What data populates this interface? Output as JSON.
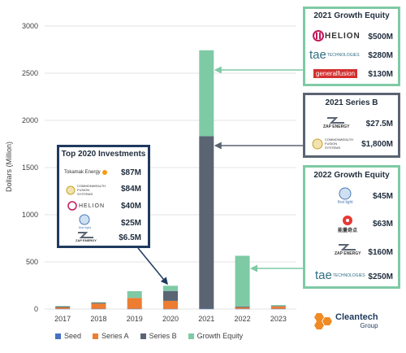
{
  "chart_data": {
    "type": "bar",
    "stacked": true,
    "categories": [
      "2017",
      "2018",
      "2019",
      "2020",
      "2021",
      "2022",
      "2023"
    ],
    "ylabel": "Dollars (Million)",
    "ylim": [
      0,
      3000
    ],
    "yticks": [
      "0",
      "500",
      "1000",
      "1500",
      "2000",
      "2500",
      "3000"
    ],
    "grid": true,
    "legend_position": "bottom",
    "series": [
      {
        "name": "Seed",
        "color": "#4472c4",
        "values": [
          3,
          3,
          3,
          2,
          3,
          3,
          3
        ]
      },
      {
        "name": "Series A",
        "color": "#ed7d31",
        "values": [
          15,
          55,
          115,
          85,
          0,
          15,
          25
        ]
      },
      {
        "name": "Series B",
        "color": "#5a6473",
        "values": [
          10,
          10,
          0,
          105,
          1830,
          10,
          5
        ]
      },
      {
        "name": "Growth Equity",
        "color": "#7ecaa5",
        "values": [
          5,
          5,
          72,
          55,
          910,
          537,
          10
        ]
      }
    ]
  },
  "boxes": {
    "growth_2021": {
      "title": "2021 Growth Equity",
      "items": [
        {
          "logo": "HELION",
          "amount": "$500M"
        },
        {
          "logo": "tae",
          "logo_sub": "TECHNOLOGIES",
          "amount": "$280M"
        },
        {
          "logo": "generalfusion",
          "amount": "$130M"
        }
      ]
    },
    "seriesb_2021": {
      "title": "2021 Series B",
      "items": [
        {
          "logo": "ZAP ENERGY",
          "amount": "$27.5M"
        },
        {
          "logo": "COMMONWEALTH FUSION SYSTEMS",
          "amount": "$1,800M"
        }
      ]
    },
    "growth_2022": {
      "title": "2022 Growth Equity",
      "items": [
        {
          "logo": "first light",
          "amount": "$45M"
        },
        {
          "logo": "能量奇点",
          "amount": "$63M"
        },
        {
          "logo": "ZAP ENERGY",
          "amount": "$160M"
        },
        {
          "logo": "tae",
          "logo_sub": "TECHNOLOGIES",
          "amount": "$250M"
        }
      ]
    },
    "top_2020": {
      "title": "Top 2020 Investments",
      "items": [
        {
          "logo": "Tokamak Energy",
          "amount": "$87M"
        },
        {
          "logo": "COMMONWEALTH FUSION SYSTEMS",
          "amount": "$84M"
        },
        {
          "logo": "HELION",
          "amount": "$40M"
        },
        {
          "logo": "first light",
          "amount": "$25M"
        },
        {
          "logo": "ZAP ENERGY",
          "amount": "$6.5M"
        }
      ]
    }
  },
  "brand": {
    "name": "Cleantech",
    "sub": "Group"
  },
  "colors": {
    "teal_border": "#7ecaa5",
    "gray_border": "#5a6473",
    "navy_border": "#1f3a5f"
  }
}
